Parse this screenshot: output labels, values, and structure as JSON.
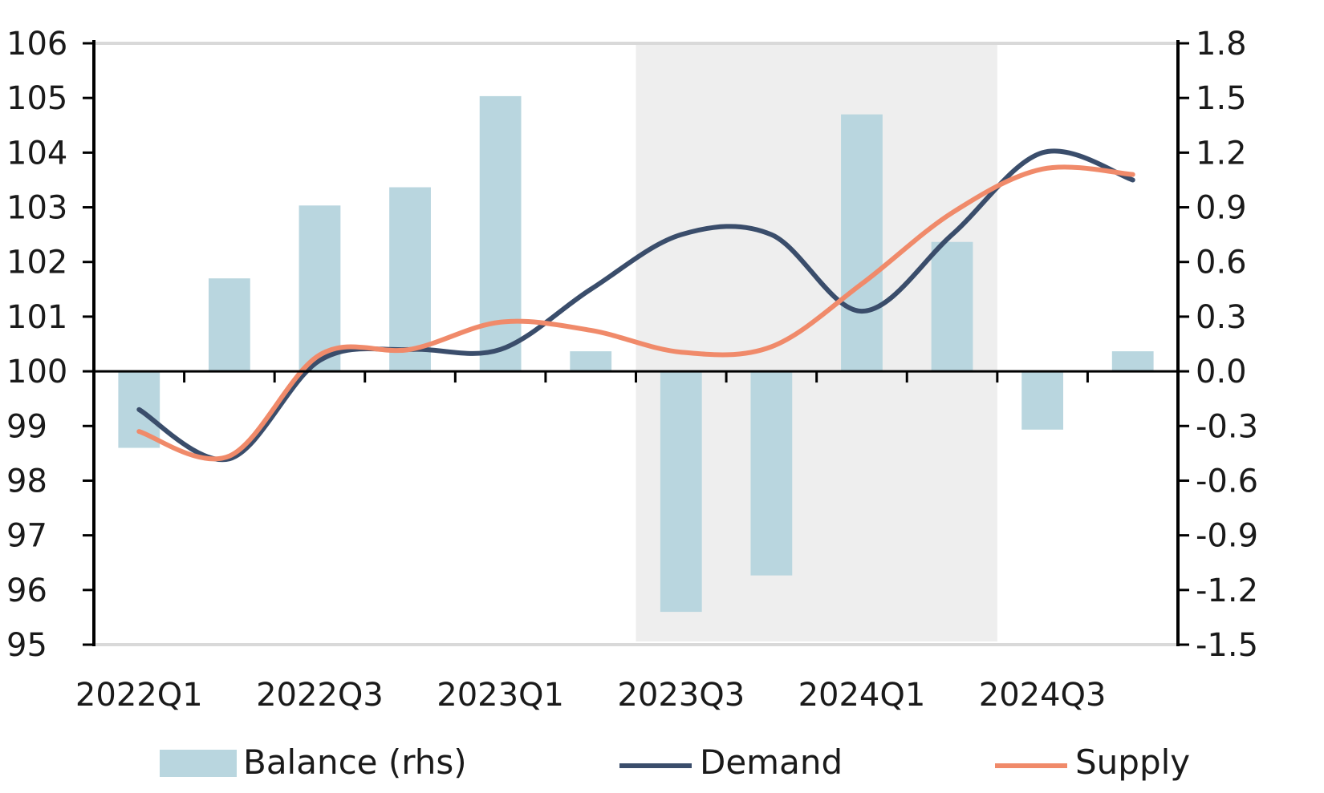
{
  "chart_data": {
    "type": "bar+line",
    "title": "",
    "xlabel": "",
    "ylabel": "",
    "categories": [
      "2022Q1",
      "2022Q2",
      "2022Q3",
      "2022Q4",
      "2023Q1",
      "2023Q2",
      "2023Q3",
      "2023Q4",
      "2024Q1",
      "2024Q2",
      "2024Q3",
      "2024Q4"
    ],
    "x_tick_labels": [
      "2022Q1",
      "2022Q3",
      "2023Q1",
      "2023Q3",
      "2024Q1",
      "2024Q3"
    ],
    "shaded_region": {
      "from": "2023Q3",
      "to": "2024Q2"
    },
    "y_left": {
      "ylim": [
        95,
        106
      ],
      "ticks": [
        95,
        96,
        97,
        98,
        99,
        100,
        101,
        102,
        103,
        104,
        105,
        106
      ]
    },
    "y_right": {
      "ylim": [
        -1.5,
        1.8
      ],
      "ticks": [
        "-1.5",
        "-1.2",
        "-0.9",
        "-0.6",
        "-0.3",
        "0.0",
        "0.3",
        "0.6",
        "0.9",
        "1.2",
        "1.5",
        "1.8"
      ]
    },
    "series": [
      {
        "name": "Balance (rhs)",
        "type": "bar",
        "axis": "right",
        "color": "#b9d6df",
        "values": [
          -0.42,
          0.51,
          0.91,
          1.01,
          1.51,
          0.11,
          -1.32,
          -1.12,
          1.41,
          0.71,
          -0.32,
          0.11
        ]
      },
      {
        "name": "Demand",
        "type": "line",
        "axis": "left",
        "color": "#3a4d6b",
        "values": [
          99.3,
          98.4,
          100.2,
          100.4,
          100.4,
          101.5,
          102.5,
          102.5,
          101.1,
          102.5,
          104.0,
          103.5
        ]
      },
      {
        "name": "Supply",
        "type": "line",
        "axis": "left",
        "color": "#f08a6a",
        "values": [
          98.9,
          98.45,
          100.3,
          100.4,
          100.9,
          100.75,
          100.35,
          100.45,
          101.6,
          102.9,
          103.7,
          103.6
        ]
      }
    ],
    "legend": {
      "position": "bottom"
    },
    "grid": false
  }
}
